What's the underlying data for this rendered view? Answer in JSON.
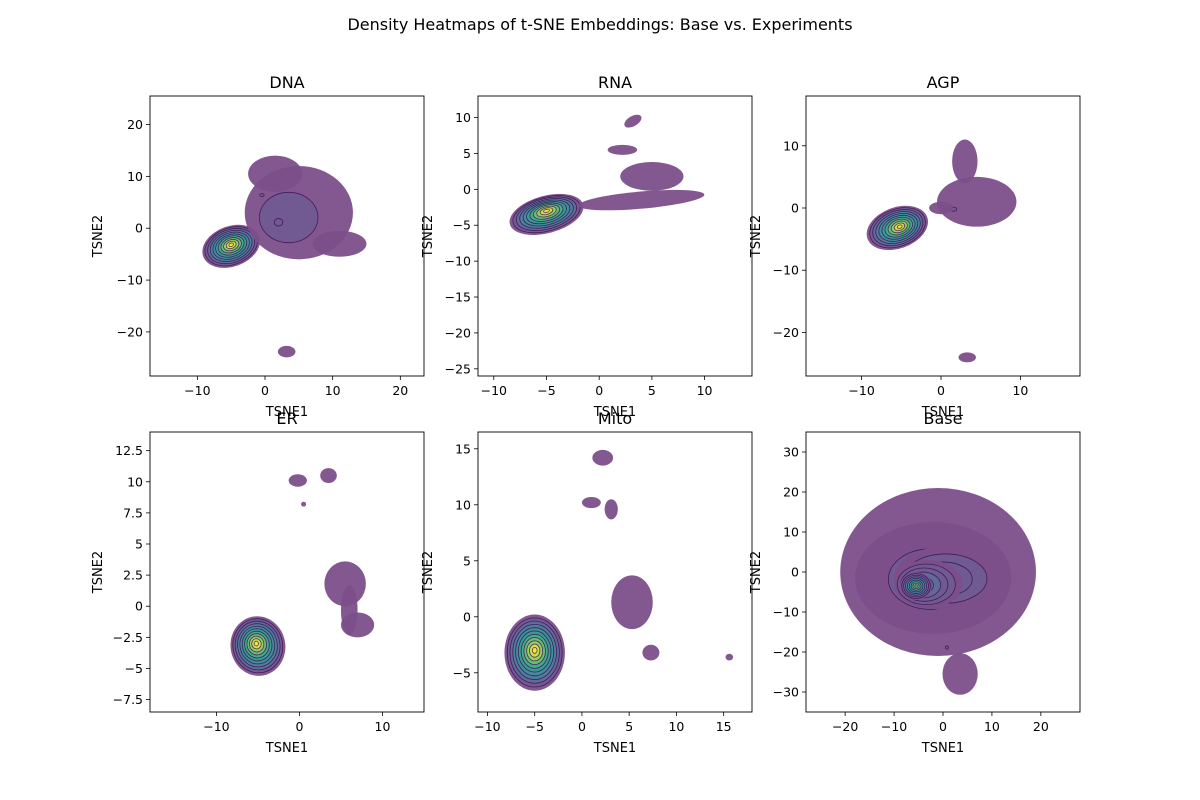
{
  "figure": {
    "title": "Density Heatmaps of t-SNE Embeddings: Base vs. Experiments"
  },
  "colors": {
    "outer": "#7c4f8a",
    "contour_line": "#3b0a4d",
    "levels": [
      "#7c4f8a",
      "#6f5b91",
      "#5e6e98",
      "#4f7e9c",
      "#3f8e9b",
      "#3a9b93",
      "#47aa87",
      "#6cbd76",
      "#9bd064",
      "#cfe04b",
      "#f0e53a"
    ]
  },
  "chart_data": [
    {
      "type": "heatmap",
      "title": "DNA",
      "xlabel": "TSNE1",
      "ylabel": "TSNE2",
      "xlim": [
        -17,
        23.5
      ],
      "ylim": [
        -28.5,
        25.5
      ],
      "xticks": [
        -10,
        0,
        10,
        20
      ],
      "yticks": [
        -20,
        -10,
        0,
        10,
        20
      ],
      "peak": [
        -5,
        -3.2
      ],
      "blobs": [
        {
          "cx": -5,
          "cy": -3.5,
          "rx": 4.4,
          "ry": 3.9,
          "angle": 20,
          "levels": 11
        },
        {
          "cx": 5,
          "cy": 3,
          "rx": 8,
          "ry": 9,
          "angle": 0,
          "levels": 3
        },
        {
          "cx": 1.5,
          "cy": 10.5,
          "rx": 4,
          "ry": 3.5,
          "angle": 0,
          "levels": 2
        },
        {
          "cx": 11,
          "cy": -3,
          "rx": 4,
          "ry": 2.5,
          "angle": 0,
          "levels": 1
        },
        {
          "cx": 3.2,
          "cy": -23.8,
          "rx": 1.3,
          "ry": 1.1,
          "angle": 0,
          "levels": 1
        }
      ]
    },
    {
      "type": "heatmap",
      "title": "RNA",
      "xlabel": "TSNE1",
      "ylabel": "TSNE2",
      "xlim": [
        -11.5,
        14.5
      ],
      "ylim": [
        -26,
        13
      ],
      "xticks": [
        -10,
        -5,
        0,
        5,
        10
      ],
      "yticks": [
        -25,
        -20,
        -15,
        -10,
        -5,
        0,
        5,
        10
      ],
      "peak": [
        -5,
        -3
      ],
      "blobs": [
        {
          "cx": -5,
          "cy": -3.5,
          "rx": 3.6,
          "ry": 2.6,
          "angle": 15,
          "levels": 11
        },
        {
          "cx": 5,
          "cy": 1.8,
          "rx": 3,
          "ry": 2,
          "angle": 0,
          "levels": 1
        },
        {
          "cx": 4,
          "cy": -1.5,
          "rx": 6,
          "ry": 1.2,
          "angle": 5,
          "levels": 1
        },
        {
          "cx": 2.2,
          "cy": 5.5,
          "rx": 1.4,
          "ry": 0.7,
          "angle": 0,
          "levels": 1
        },
        {
          "cx": 3.2,
          "cy": 9.5,
          "rx": 0.9,
          "ry": 0.7,
          "angle": 30,
          "levels": 1
        }
      ]
    },
    {
      "type": "heatmap",
      "title": "AGP",
      "xlabel": "TSNE1",
      "ylabel": "TSNE2",
      "xlim": [
        -17,
        17.5
      ],
      "ylim": [
        -27,
        18
      ],
      "xticks": [
        -10,
        0,
        10
      ],
      "yticks": [
        -20,
        -10,
        0,
        10
      ],
      "peak": [
        -5.2,
        -3
      ],
      "blobs": [
        {
          "cx": -5.5,
          "cy": -3.2,
          "rx": 4,
          "ry": 3.3,
          "angle": 20,
          "levels": 11
        },
        {
          "cx": 4.5,
          "cy": 1,
          "rx": 5,
          "ry": 4,
          "angle": 0,
          "levels": 2
        },
        {
          "cx": 3,
          "cy": 7.5,
          "rx": 1.6,
          "ry": 3.5,
          "angle": 0,
          "levels": 1
        },
        {
          "cx": 0,
          "cy": 0,
          "rx": 1.5,
          "ry": 1,
          "angle": 0,
          "levels": 1
        },
        {
          "cx": 3.3,
          "cy": -24,
          "rx": 1.1,
          "ry": 0.8,
          "angle": 0,
          "levels": 1
        }
      ]
    },
    {
      "type": "heatmap",
      "title": "ER",
      "xlabel": "TSNE1",
      "ylabel": "TSNE2",
      "xlim": [
        -18,
        15
      ],
      "ylim": [
        -8.5,
        14
      ],
      "xticks": [
        -10,
        0,
        10
      ],
      "yticks": [
        -7.5,
        -5.0,
        -2.5,
        0.0,
        2.5,
        5.0,
        7.5,
        10.0,
        12.5
      ],
      "peak": [
        -5.2,
        -3
      ],
      "blobs": [
        {
          "cx": -5,
          "cy": -3.2,
          "rx": 3.3,
          "ry": 2.4,
          "angle": 10,
          "levels": 11
        },
        {
          "cx": 5.5,
          "cy": 1.8,
          "rx": 2.5,
          "ry": 1.8,
          "angle": 0,
          "levels": 1
        },
        {
          "cx": 7,
          "cy": -1.5,
          "rx": 2,
          "ry": 1,
          "angle": 0,
          "levels": 1
        },
        {
          "cx": 6,
          "cy": -0.3,
          "rx": 1,
          "ry": 2,
          "angle": 0,
          "levels": 1
        },
        {
          "cx": -0.2,
          "cy": 10.1,
          "rx": 1.1,
          "ry": 0.5,
          "angle": 0,
          "levels": 1
        },
        {
          "cx": 3.5,
          "cy": 10.5,
          "rx": 1,
          "ry": 0.6,
          "angle": 0,
          "levels": 1
        },
        {
          "cx": 0.5,
          "cy": 8.2,
          "rx": 0.3,
          "ry": 0.2,
          "angle": 0,
          "levels": 1
        }
      ]
    },
    {
      "type": "heatmap",
      "title": "Mito",
      "xlabel": "TSNE1",
      "ylabel": "TSNE2",
      "xlim": [
        -11,
        18
      ],
      "ylim": [
        -8.5,
        16.5
      ],
      "xticks": [
        -10,
        -5,
        0,
        5,
        10,
        15
      ],
      "yticks": [
        -5,
        0,
        5,
        10,
        15
      ],
      "peak": [
        -5,
        -3
      ],
      "blobs": [
        {
          "cx": -5,
          "cy": -3.2,
          "rx": 3.2,
          "ry": 3.4,
          "angle": 0,
          "levels": 11
        },
        {
          "cx": 5.3,
          "cy": 1.3,
          "rx": 2.2,
          "ry": 2.4,
          "angle": 0,
          "levels": 1
        },
        {
          "cx": 7.3,
          "cy": -3.2,
          "rx": 0.9,
          "ry": 0.7,
          "angle": 0,
          "levels": 1
        },
        {
          "cx": 2.2,
          "cy": 14.2,
          "rx": 1.1,
          "ry": 0.7,
          "angle": 0,
          "levels": 1
        },
        {
          "cx": 1,
          "cy": 10.2,
          "rx": 1,
          "ry": 0.5,
          "angle": 0,
          "levels": 1
        },
        {
          "cx": 3.1,
          "cy": 9.6,
          "rx": 0.7,
          "ry": 0.9,
          "angle": 0,
          "levels": 1
        },
        {
          "cx": 15.6,
          "cy": -3.6,
          "rx": 0.4,
          "ry": 0.3,
          "angle": 0,
          "levels": 1
        }
      ]
    },
    {
      "type": "heatmap",
      "title": "Base",
      "xlabel": "TSNE1",
      "ylabel": "TSNE2",
      "xlim": [
        -28,
        28
      ],
      "ylim": [
        -35,
        35
      ],
      "xticks": [
        -20,
        -10,
        0,
        10,
        20
      ],
      "yticks": [
        -30,
        -20,
        -10,
        0,
        10,
        20,
        30
      ],
      "peak": [
        -5.5,
        -3.5
      ],
      "blobs": [
        {
          "cx": -1,
          "cy": 0,
          "rx": 20,
          "ry": 21,
          "angle": 0,
          "levels": 1
        },
        {
          "cx": -2,
          "cy": -1.5,
          "rx": 16,
          "ry": 14,
          "angle": 0,
          "levels": 3
        },
        {
          "cx": 1,
          "cy": -1.5,
          "rx": 11,
          "ry": 8,
          "angle": 0,
          "levels": 5
        },
        {
          "cx": -3,
          "cy": -3,
          "rx": 7,
          "ry": 6,
          "angle": 0,
          "levels": 7
        },
        {
          "cx": -5.5,
          "cy": -3.5,
          "rx": 3.3,
          "ry": 3.5,
          "angle": 0,
          "levels": 9
        },
        {
          "cx": 3.5,
          "cy": -25.5,
          "rx": 3.6,
          "ry": 5.2,
          "angle": 0,
          "levels": 2
        }
      ]
    }
  ]
}
